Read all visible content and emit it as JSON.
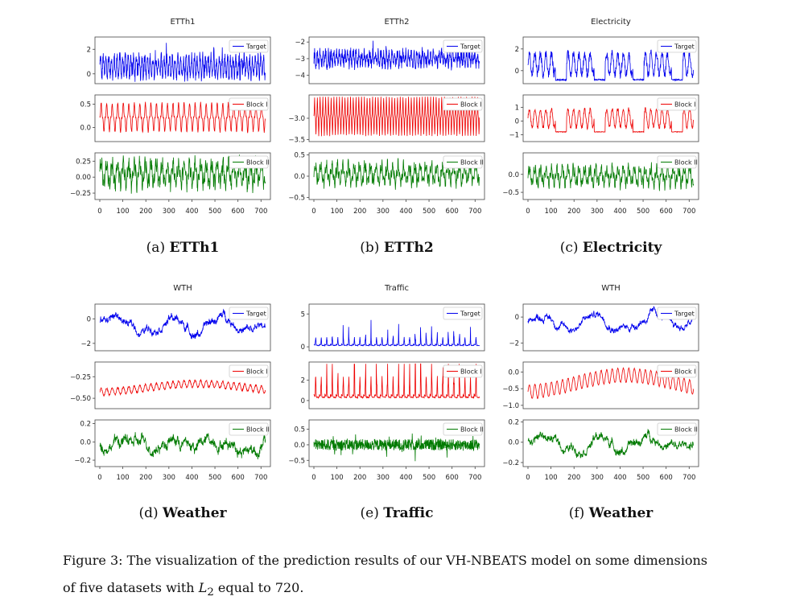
{
  "figure": {
    "caption_prefix": "Figure 3:",
    "caption_text_before": "The visualization of the prediction results of our VH-NBEATS model on some dimensions of five datasets with",
    "caption_math": "L",
    "caption_math_sub": "2",
    "caption_text_after": "equal to 720."
  },
  "colors": {
    "Target": "#0000ee",
    "Block I": "#ee0000",
    "Block II": "#007a00"
  },
  "chart_data": [
    {
      "id": "a",
      "type": "line",
      "title": "ETTh1",
      "sublabel": "(a)",
      "caption": "ETTh1",
      "x_ticks": [
        0,
        100,
        200,
        300,
        400,
        500,
        600,
        700
      ],
      "x_range": [
        0,
        720
      ],
      "panels": [
        {
          "legend": "Target",
          "ylim": [
            -0.8,
            3.0
          ],
          "yticks": [
            {
              "v": 2,
              "l": "2"
            },
            {
              "v": 0,
              "l": "0"
            }
          ],
          "mean": 0.6,
          "amp": 1.7,
          "period": 12,
          "noise": 0.5,
          "style": "spiky"
        },
        {
          "legend": "Block I",
          "ylim": [
            -0.3,
            0.7
          ],
          "yticks": [
            {
              "v": 0.5,
              "l": "0.5"
            },
            {
              "v": 0,
              "l": "0.0"
            }
          ],
          "mean": 0.22,
          "amp": 0.62,
          "period": 24,
          "noise": 0.05,
          "style": "sharp"
        },
        {
          "legend": "Block II",
          "ylim": [
            -0.35,
            0.38
          ],
          "yticks": [
            {
              "v": 0.25,
              "l": "0.25"
            },
            {
              "v": 0,
              "l": "0.00"
            },
            {
              "v": -0.25,
              "l": "−0.25"
            }
          ],
          "mean": 0.05,
          "amp": 0.3,
          "period": 24,
          "noise": 0.08,
          "style": "wave"
        }
      ]
    },
    {
      "id": "b",
      "type": "line",
      "title": "ETTh2",
      "sublabel": "(b)",
      "caption": "ETTh2",
      "x_ticks": [
        0,
        100,
        200,
        300,
        400,
        500,
        600,
        700
      ],
      "x_range": [
        0,
        720
      ],
      "panels": [
        {
          "legend": "Target",
          "ylim": [
            -4.5,
            -1.7
          ],
          "yticks": [
            {
              "v": -2,
              "l": "−2"
            },
            {
              "v": -3,
              "l": "−3"
            },
            {
              "v": -4,
              "l": "−4"
            }
          ],
          "mean": -3.0,
          "amp": 0.8,
          "period": 12,
          "noise": 0.35,
          "style": "spiky"
        },
        {
          "legend": "Block I",
          "ylim": [
            -3.55,
            -2.45
          ],
          "yticks": [
            {
              "v": -3,
              "l": "−3.0"
            },
            {
              "v": -3.5,
              "l": "−3.5"
            }
          ],
          "mean": -2.95,
          "amp": 0.9,
          "period": 12,
          "noise": 0.05,
          "style": "sharp"
        },
        {
          "legend": "Block II",
          "ylim": [
            -0.55,
            0.55
          ],
          "yticks": [
            {
              "v": 0.5,
              "l": "0.5"
            },
            {
              "v": 0,
              "l": "0.0"
            },
            {
              "v": -0.5,
              "l": "−0.5"
            }
          ],
          "mean": 0.05,
          "amp": 0.35,
          "period": 24,
          "noise": 0.1,
          "style": "wave"
        }
      ]
    },
    {
      "id": "c",
      "type": "line",
      "title": "Electricity",
      "sublabel": "(c)",
      "caption": "Electricity",
      "x_ticks": [
        0,
        100,
        200,
        300,
        400,
        500,
        600,
        700
      ],
      "x_range": [
        0,
        720
      ],
      "panels": [
        {
          "legend": "Target",
          "ylim": [
            -1.2,
            3.1
          ],
          "yticks": [
            {
              "v": 2,
              "l": "2"
            },
            {
              "v": 0,
              "l": "0"
            }
          ],
          "mean": 0.6,
          "amp": 1.6,
          "period": 24,
          "noise": 0.4,
          "style": "weekly"
        },
        {
          "legend": "Block I",
          "ylim": [
            -1.5,
            1.9
          ],
          "yticks": [
            {
              "v": 1,
              "l": "1"
            },
            {
              "v": 0,
              "l": "0"
            },
            {
              "v": -1,
              "l": "−1"
            }
          ],
          "mean": 0.2,
          "amp": 1.1,
          "period": 24,
          "noise": 0.15,
          "style": "weekly"
        },
        {
          "legend": "Block II",
          "ylim": [
            -0.7,
            0.6
          ],
          "yticks": [
            {
              "v": 0,
              "l": "0.0"
            },
            {
              "v": -0.5,
              "l": "−0.5"
            }
          ],
          "mean": -0.05,
          "amp": 0.4,
          "period": 24,
          "noise": 0.1,
          "style": "wave"
        }
      ]
    },
    {
      "id": "d",
      "type": "line",
      "title": "WTH",
      "sublabel": "(d)",
      "caption": "Weather",
      "x_ticks": [
        0,
        100,
        200,
        300,
        400,
        500,
        600,
        700
      ],
      "x_range": [
        0,
        720
      ],
      "panels": [
        {
          "legend": "Target",
          "ylim": [
            -2.6,
            1.2
          ],
          "yticks": [
            {
              "v": 0,
              "l": "0"
            },
            {
              "v": -2,
              "l": "−2"
            }
          ],
          "mean": -0.4,
          "amp": 0.6,
          "period": 60,
          "noise": 0.3,
          "style": "walk"
        },
        {
          "legend": "Block I",
          "ylim": [
            -0.62,
            -0.08
          ],
          "yticks": [
            {
              "v": -0.25,
              "l": "−0.25"
            },
            {
              "v": -0.5,
              "l": "−0.50"
            }
          ],
          "mean": -0.38,
          "amp": 0.08,
          "period": 24,
          "noise": 0.02,
          "style": "trendwave"
        },
        {
          "legend": "Block II",
          "ylim": [
            -0.27,
            0.24
          ],
          "yticks": [
            {
              "v": 0.2,
              "l": "0.2"
            },
            {
              "v": 0,
              "l": "0.0"
            },
            {
              "v": -0.2,
              "l": "−0.2"
            }
          ],
          "mean": 0.0,
          "amp": 0.05,
          "period": 40,
          "noise": 0.06,
          "style": "walk"
        }
      ]
    },
    {
      "id": "e",
      "type": "line",
      "title": "Traffic",
      "sublabel": "(e)",
      "caption": "Traffic",
      "x_ticks": [
        0,
        100,
        200,
        300,
        400,
        500,
        600,
        700
      ],
      "x_range": [
        0,
        720
      ],
      "panels": [
        {
          "legend": "Target",
          "ylim": [
            -0.6,
            6.5
          ],
          "yticks": [
            {
              "v": 5,
              "l": "5"
            },
            {
              "v": 0,
              "l": "0"
            }
          ],
          "mean": 0.2,
          "amp": 0.6,
          "period": 24,
          "noise": 0.1,
          "style": "traffic"
        },
        {
          "legend": "Block I",
          "ylim": [
            -0.8,
            3.8
          ],
          "yticks": [
            {
              "v": 2,
              "l": "2"
            },
            {
              "v": 0,
              "l": "0"
            }
          ],
          "mean": 0.3,
          "amp": 1.0,
          "period": 24,
          "noise": 0.1,
          "style": "traffic"
        },
        {
          "legend": "Block II",
          "ylim": [
            -0.7,
            0.8
          ],
          "yticks": [
            {
              "v": 0.5,
              "l": "0.5"
            },
            {
              "v": 0,
              "l": "0.0"
            },
            {
              "v": -0.5,
              "l": "−0.5"
            }
          ],
          "mean": 0.0,
          "amp": 0.05,
          "period": 24,
          "noise": 0.18,
          "style": "noise"
        }
      ]
    },
    {
      "id": "f",
      "type": "line",
      "title": "WTH",
      "sublabel": "(f)",
      "caption": "Weather",
      "x_ticks": [
        0,
        100,
        200,
        300,
        400,
        500,
        600,
        700
      ],
      "x_range": [
        0,
        720
      ],
      "panels": [
        {
          "legend": "Target",
          "ylim": [
            -2.6,
            1.0
          ],
          "yticks": [
            {
              "v": 0,
              "l": "0"
            },
            {
              "v": -2,
              "l": "−2"
            }
          ],
          "mean": -0.3,
          "amp": 0.5,
          "period": 60,
          "noise": 0.25,
          "style": "walk"
        },
        {
          "legend": "Block I",
          "ylim": [
            -1.1,
            0.3
          ],
          "yticks": [
            {
              "v": 0,
              "l": "0.0"
            },
            {
              "v": -0.5,
              "l": "−0.5"
            },
            {
              "v": -1,
              "l": "−1.0"
            }
          ],
          "mean": -0.35,
          "amp": 0.42,
          "period": 24,
          "noise": 0.03,
          "style": "trendwave"
        },
        {
          "legend": "Block II",
          "ylim": [
            -0.24,
            0.22
          ],
          "yticks": [
            {
              "v": 0.2,
              "l": "0.2"
            },
            {
              "v": 0,
              "l": "0.0"
            },
            {
              "v": -0.2,
              "l": "−0.2"
            }
          ],
          "mean": 0.0,
          "amp": 0.06,
          "period": 40,
          "noise": 0.04,
          "style": "walk"
        }
      ]
    }
  ]
}
